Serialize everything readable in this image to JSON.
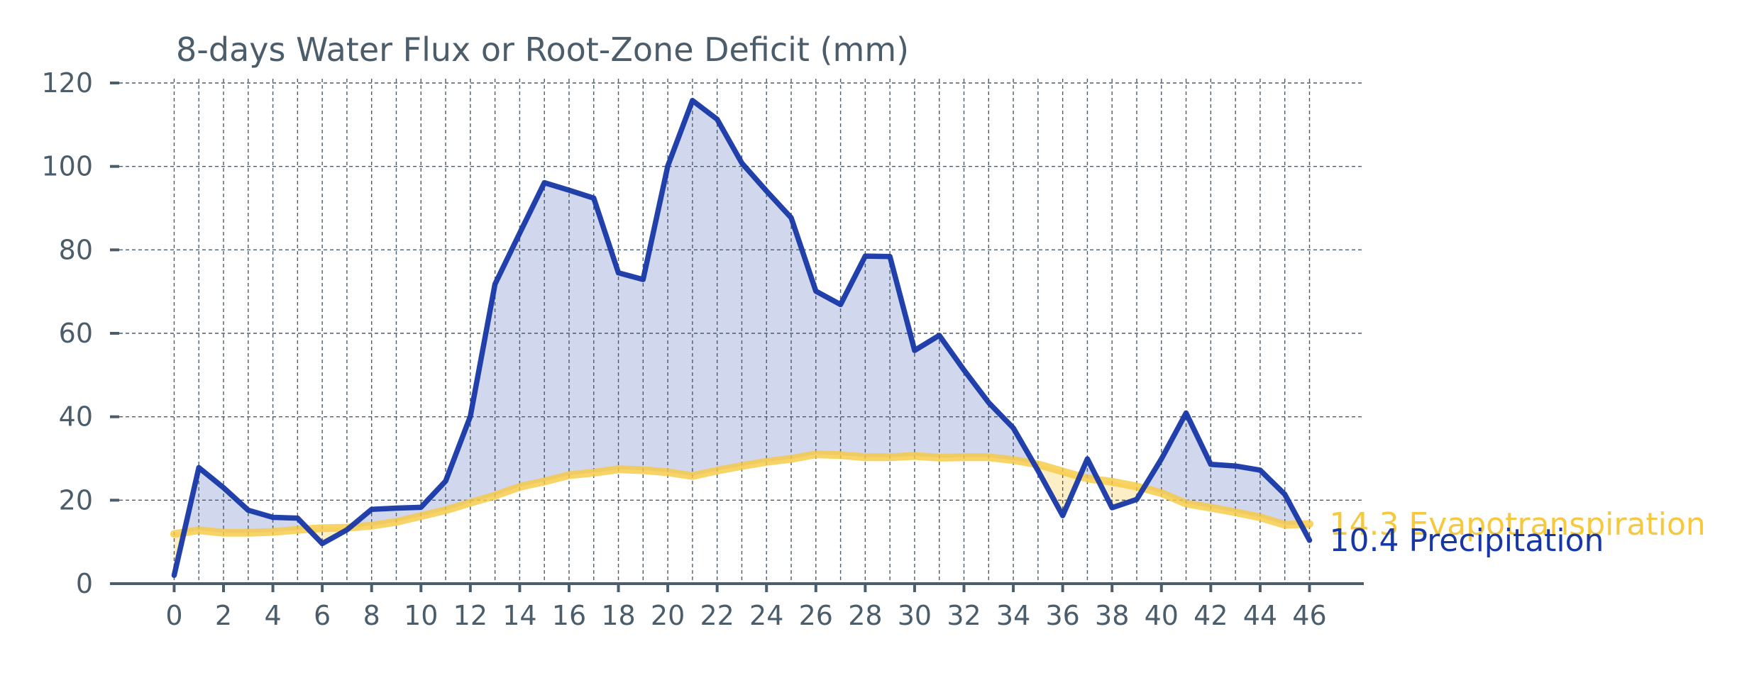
{
  "chart_data": {
    "type": "line",
    "title": "8-days Water Flux or Root-Zone Deficit (mm)",
    "xlabel": "",
    "ylabel": "",
    "x": [
      0,
      1,
      2,
      3,
      4,
      5,
      6,
      7,
      8,
      9,
      10,
      11,
      12,
      13,
      14,
      15,
      16,
      17,
      18,
      19,
      20,
      21,
      22,
      23,
      24,
      25,
      26,
      27,
      28,
      29,
      30,
      31,
      32,
      33,
      34,
      35,
      36,
      37,
      38,
      39,
      40,
      41,
      42,
      43,
      44,
      45,
      46
    ],
    "xlim": [
      -2.6,
      48.2
    ],
    "ylim": [
      0,
      120
    ],
    "xticks": [
      0,
      2,
      4,
      6,
      8,
      10,
      12,
      14,
      16,
      18,
      20,
      22,
      24,
      26,
      28,
      30,
      32,
      34,
      36,
      38,
      40,
      42,
      44,
      46
    ],
    "yticks": [
      0,
      20,
      40,
      60,
      80,
      100,
      120
    ],
    "grid": true,
    "fill_between": true,
    "series": [
      {
        "name": "Evapotranspiration",
        "end_label": "14.3 Evapotranspiration",
        "color": "#f6c83f",
        "values": [
          11.9,
          12.8,
          12.2,
          12.2,
          12.4,
          12.9,
          13.3,
          13.4,
          13.9,
          14.8,
          16.2,
          17.6,
          19.4,
          21.1,
          23.2,
          24.5,
          26.0,
          26.6,
          27.4,
          27.2,
          26.7,
          25.8,
          27.1,
          28.2,
          29.2,
          29.9,
          31.0,
          30.8,
          30.3,
          30.3,
          30.6,
          30.2,
          30.3,
          30.3,
          29.6,
          28.6,
          26.9,
          25.2,
          24.4,
          23.3,
          21.7,
          19.2,
          18.2,
          17.1,
          15.9,
          14.1,
          14.3
        ]
      },
      {
        "name": "Precipitation",
        "end_label": "10.4 Precipitation",
        "color": "#1737a6",
        "values": [
          2.0,
          27.8,
          23.0,
          17.6,
          15.9,
          15.7,
          9.6,
          12.9,
          17.8,
          18.1,
          18.3,
          24.6,
          40.1,
          71.8,
          84.0,
          96.1,
          94.3,
          92.4,
          74.5,
          72.9,
          100.1,
          115.8,
          111.3,
          100.8,
          94.1,
          87.7,
          70.1,
          66.9,
          78.5,
          78.4,
          55.9,
          59.5,
          51.2,
          43.4,
          37.3,
          27.1,
          16.3,
          29.9,
          18.2,
          20.2,
          29.9,
          40.9,
          28.6,
          28.2,
          27.2,
          21.4,
          10.4
        ]
      }
    ]
  }
}
